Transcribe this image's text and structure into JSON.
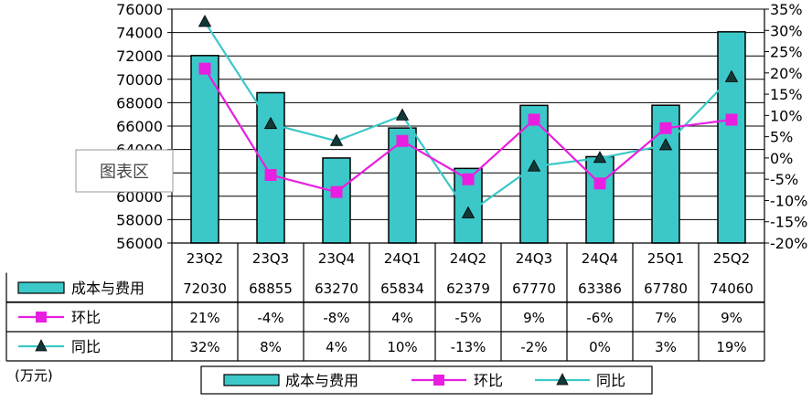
{
  "chart_data": {
    "type": "bar",
    "categories": [
      "23Q2",
      "23Q3",
      "23Q4",
      "24Q1",
      "24Q2",
      "24Q3",
      "24Q4",
      "25Q1",
      "25Q2"
    ],
    "series": [
      {
        "name": "成本与费用",
        "type": "bar",
        "axis": "left",
        "values": [
          72030,
          68855,
          63270,
          65834,
          62379,
          67770,
          63386,
          67780,
          74060
        ],
        "labels": [
          "72030",
          "68855",
          "63270",
          "65834",
          "62379",
          "67770",
          "63386",
          "67780",
          "74060"
        ],
        "color": "#3CC8C8"
      },
      {
        "name": "环比",
        "type": "line",
        "axis": "right",
        "marker": "square",
        "values": [
          21,
          -4,
          -8,
          4,
          -5,
          9,
          -6,
          7,
          9
        ],
        "labels": [
          "21%",
          "-4%",
          "-8%",
          "4%",
          "-5%",
          "9%",
          "-6%",
          "7%",
          "9%"
        ],
        "color": "#E81FE0"
      },
      {
        "name": "同比",
        "type": "line",
        "axis": "right",
        "marker": "triangle",
        "values": [
          32,
          8,
          4,
          10,
          -13,
          -2,
          0,
          3,
          19
        ],
        "labels": [
          "32%",
          "8%",
          "4%",
          "10%",
          "-13%",
          "-2%",
          "0%",
          "3%",
          "19%"
        ],
        "color": "#3CC8C8"
      }
    ],
    "y_left": {
      "range": [
        56000,
        76000
      ],
      "ticks": [
        "56000",
        "58000",
        "60000",
        "62000",
        "64000",
        "66000",
        "68000",
        "70000",
        "72000",
        "74000",
        "76000"
      ]
    },
    "y_right": {
      "range": [
        -20,
        35
      ],
      "ticks": [
        "-20%",
        "-15%",
        "-10%",
        "-5%",
        "0%",
        "5%",
        "10%",
        "15%",
        "20%",
        "25%",
        "30%",
        "35%"
      ]
    },
    "unit_label": "(万元)",
    "plot_area_label": "图表区",
    "grid": true,
    "legend_position": "bottom",
    "data_table": true
  }
}
